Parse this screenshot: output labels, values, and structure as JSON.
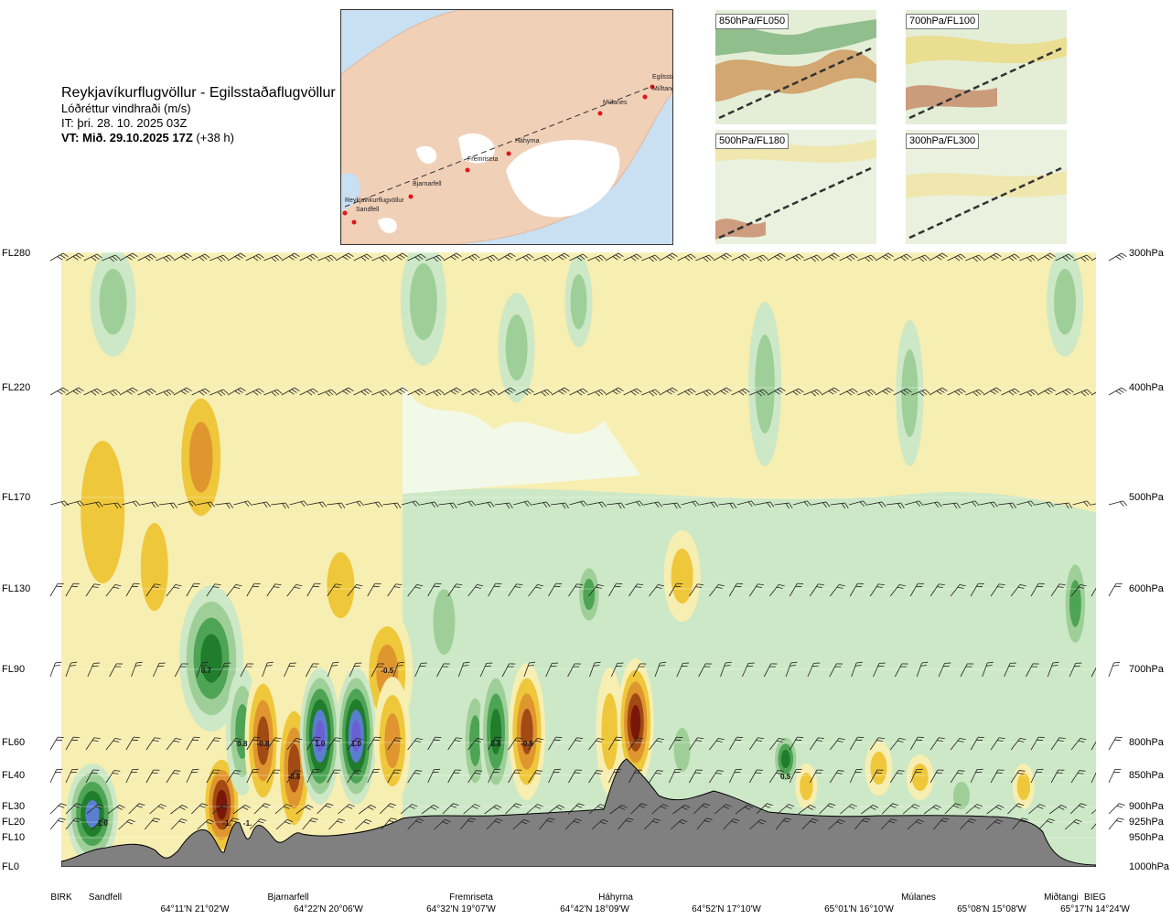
{
  "header": {
    "route": "Reykjavíkurflugvöllur - Egilsstaðaflugvöllur",
    "parameter": "Lóðréttur vindhraði (m/s)",
    "issue_time": "IT: þri. 28. 10. 2025 03Z",
    "valid_time_bold": "VT: Mið. 29.10.2025 17Z",
    "valid_time_lead": "(+38 h)"
  },
  "overview_map": {
    "waypoints": [
      "Reykjavíkurflugvöllur",
      "Sandfell",
      "Bjarnarfell",
      "Fremriseta",
      "Háhyrna",
      "Múlanes",
      "Egilssta",
      "Miðtangi"
    ],
    "colors": {
      "sea": "#c9dff2",
      "land": "#f1d0b8",
      "ice": "#ffffff",
      "route": "#333333",
      "point": "#e0151b"
    }
  },
  "level_maps": [
    {
      "label": "850hPa/FL050"
    },
    {
      "label": "700hPa/FL100"
    },
    {
      "label": "500hPa/FL180"
    },
    {
      "label": "300hPa/FL300"
    }
  ],
  "chart_data": {
    "type": "heatmap",
    "title": "Lóðréttur vindhraði (m/s)",
    "units": "m/s",
    "x_stations": [
      "BIRK",
      "Sandfell",
      "Bjarnarfell",
      "Fremriseta",
      "Háhyrna",
      "Múlanes",
      "Miðtangi",
      "BIEG"
    ],
    "x_coordinates": [
      "64°11'N 21°02'W",
      "64°22'N 20°06'W",
      "64°32'N 19°07'W",
      "64°42'N 18°09'W",
      "64°52'N 17°10'W",
      "65°01'N 16°10'W",
      "65°08'N 15°08'W",
      "65°17'N 14°24'W"
    ],
    "y_levels_left": [
      "FL280",
      "FL220",
      "FL170",
      "FL130",
      "FL90",
      "FL60",
      "FL40",
      "FL30",
      "FL20",
      "FL10",
      "FL0"
    ],
    "y_levels_right": [
      "300hPa",
      "400hPa",
      "500hPa",
      "600hPa",
      "700hPa",
      "800hPa",
      "850hPa",
      "900hPa",
      "925hPa",
      "950hPa",
      "1000hPa"
    ],
    "contour_labels": [
      {
        "value": "1.0",
        "station_pos": 0.04,
        "level": "FL20"
      },
      {
        "value": "0.7",
        "station_pos": 0.14,
        "level": "FL90"
      },
      {
        "value": "-1.",
        "station_pos": 0.16,
        "level": "FL20"
      },
      {
        "value": "-1.",
        "station_pos": 0.18,
        "level": "FL20"
      },
      {
        "value": "0.8",
        "station_pos": 0.175,
        "level": "FL60"
      },
      {
        "value": "-0.8",
        "station_pos": 0.195,
        "level": "FL60"
      },
      {
        "value": "-0.8",
        "station_pos": 0.225,
        "level": "FL40"
      },
      {
        "value": "1.0",
        "station_pos": 0.25,
        "level": "FL60"
      },
      {
        "value": "1.0",
        "station_pos": 0.285,
        "level": "FL60"
      },
      {
        "value": "-0.5",
        "station_pos": 0.315,
        "level": "FL90"
      },
      {
        "value": "0.8",
        "station_pos": 0.42,
        "level": "FL60"
      },
      {
        "value": "-0.8",
        "station_pos": 0.45,
        "level": "FL60"
      },
      {
        "value": "0.5",
        "station_pos": 0.7,
        "level": "FL40"
      }
    ],
    "legend": {
      "dark_blue": "#6b5fd3",
      "blue": "#5a7fd0",
      "dark_green": "#1f7d2b",
      "green": "#4ea455",
      "mid_green": "#9fcf98",
      "light_green": "#cde8c6",
      "pale": "#f3f9e8",
      "light_yellow": "#f7eeb1",
      "yellow": "#efc73a",
      "orange": "#e0962f",
      "brown": "#a14a14",
      "dark_red": "#7a1708"
    },
    "terrain_color": "#808080",
    "grid": true
  }
}
